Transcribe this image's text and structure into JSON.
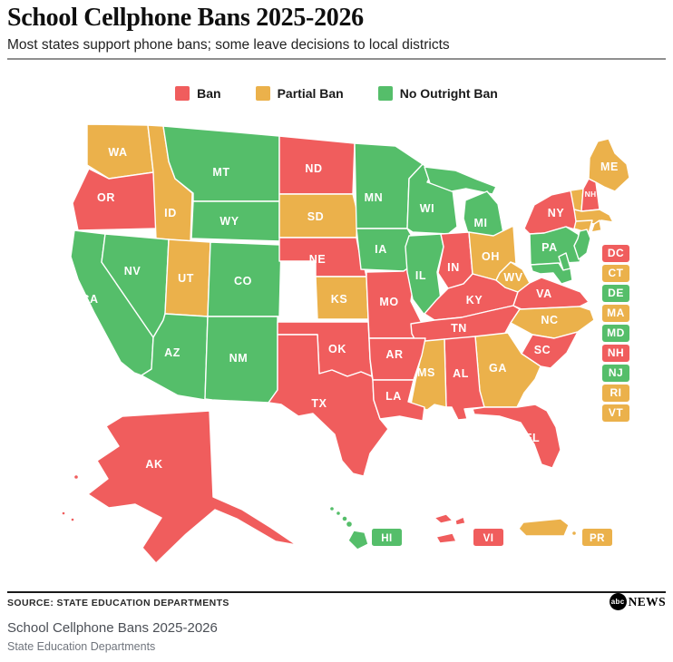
{
  "header": {
    "title": "School Cellphone Bans 2025-2026",
    "subtitle": "Most states support phone bans; some leave decisions to local districts"
  },
  "legend": {
    "items": [
      {
        "label": "Ban",
        "status": "ban"
      },
      {
        "label": "Partial Ban",
        "status": "partial"
      },
      {
        "label": "No Outright Ban",
        "status": "none"
      }
    ]
  },
  "colors": {
    "ban": "#F05D5D",
    "partial": "#EBB14B",
    "none": "#55BE6A"
  },
  "chart_data": {
    "type": "heatmap",
    "subtype": "us-choropleth",
    "title": "School Cellphone Bans 2025-2026",
    "categories": [
      "ban",
      "partial",
      "none"
    ],
    "legend": [
      "Ban",
      "Partial Ban",
      "No Outright Ban"
    ],
    "legend_position": "top-center",
    "states": [
      {
        "code": "WA",
        "status": "partial"
      },
      {
        "code": "OR",
        "status": "ban"
      },
      {
        "code": "CA",
        "status": "none"
      },
      {
        "code": "NV",
        "status": "none"
      },
      {
        "code": "ID",
        "status": "partial"
      },
      {
        "code": "MT",
        "status": "none"
      },
      {
        "code": "WY",
        "status": "none"
      },
      {
        "code": "UT",
        "status": "partial"
      },
      {
        "code": "CO",
        "status": "none"
      },
      {
        "code": "AZ",
        "status": "none"
      },
      {
        "code": "NM",
        "status": "none"
      },
      {
        "code": "ND",
        "status": "ban"
      },
      {
        "code": "SD",
        "status": "partial"
      },
      {
        "code": "NE",
        "status": "ban"
      },
      {
        "code": "KS",
        "status": "partial"
      },
      {
        "code": "OK",
        "status": "ban"
      },
      {
        "code": "TX",
        "status": "ban"
      },
      {
        "code": "MN",
        "status": "none"
      },
      {
        "code": "IA",
        "status": "none"
      },
      {
        "code": "MO",
        "status": "ban"
      },
      {
        "code": "AR",
        "status": "ban"
      },
      {
        "code": "LA",
        "status": "ban"
      },
      {
        "code": "WI",
        "status": "none"
      },
      {
        "code": "IL",
        "status": "none"
      },
      {
        "code": "IN",
        "status": "ban"
      },
      {
        "code": "MI",
        "status": "none"
      },
      {
        "code": "OH",
        "status": "partial"
      },
      {
        "code": "KY",
        "status": "ban"
      },
      {
        "code": "TN",
        "status": "ban"
      },
      {
        "code": "MS",
        "status": "partial"
      },
      {
        "code": "AL",
        "status": "ban"
      },
      {
        "code": "GA",
        "status": "partial"
      },
      {
        "code": "FL",
        "status": "ban"
      },
      {
        "code": "SC",
        "status": "ban"
      },
      {
        "code": "NC",
        "status": "partial"
      },
      {
        "code": "VA",
        "status": "ban"
      },
      {
        "code": "WV",
        "status": "partial"
      },
      {
        "code": "PA",
        "status": "none"
      },
      {
        "code": "NY",
        "status": "ban"
      },
      {
        "code": "NJ",
        "status": "none"
      },
      {
        "code": "DE",
        "status": "none"
      },
      {
        "code": "MD",
        "status": "none"
      },
      {
        "code": "CT",
        "status": "partial"
      },
      {
        "code": "RI",
        "status": "partial"
      },
      {
        "code": "MA",
        "status": "partial"
      },
      {
        "code": "VT",
        "status": "partial"
      },
      {
        "code": "NH",
        "status": "ban"
      },
      {
        "code": "ME",
        "status": "partial"
      },
      {
        "code": "AK",
        "status": "ban"
      },
      {
        "code": "HI",
        "status": "none"
      },
      {
        "code": "DC",
        "status": "ban"
      },
      {
        "code": "VI",
        "status": "ban"
      },
      {
        "code": "PR",
        "status": "partial"
      }
    ]
  },
  "callouts": [
    "DC",
    "CT",
    "DE",
    "MA",
    "MD",
    "NH",
    "NJ",
    "RI",
    "VT"
  ],
  "footer": {
    "source": "SOURCE: STATE EDUCATION DEPARTMENTS",
    "logo_abc": "abc",
    "logo_news": "NEWS",
    "caption_title": "School Cellphone Bans 2025-2026",
    "caption_source": "State Education Departments"
  }
}
